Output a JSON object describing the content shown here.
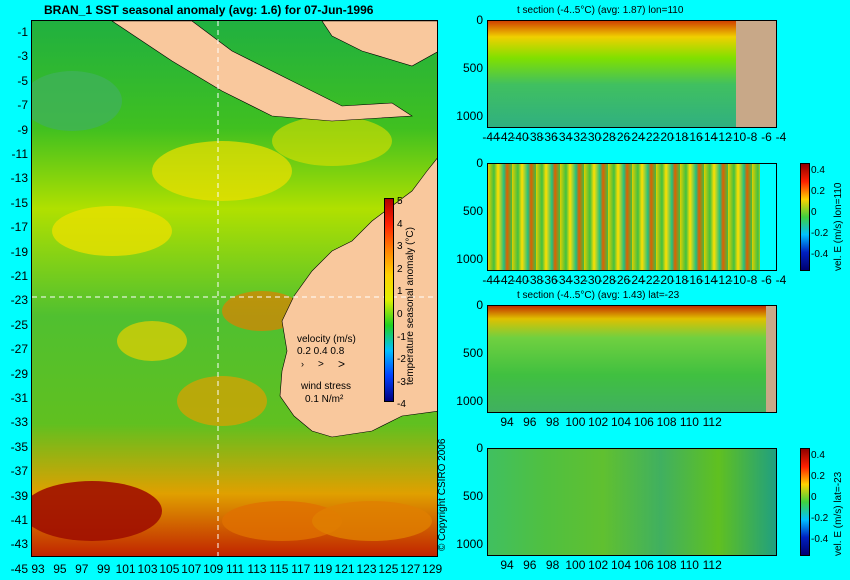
{
  "map": {
    "title": "BRAN_1  SST seasonal anomaly  (avg: 1.6)  for 07-Jun-1996",
    "lat_ticks": [
      "-1",
      "-3",
      "-5",
      "-7",
      "-9",
      "-11",
      "-13",
      "-15",
      "-17",
      "-19",
      "-21",
      "-23",
      "-25",
      "-27",
      "-29",
      "-31",
      "-33",
      "-35",
      "-37",
      "-39",
      "-41",
      "-43",
      "-45"
    ],
    "lon_ticks": [
      "93",
      "95",
      "97",
      "99",
      "101",
      "103",
      "105",
      "107",
      "109",
      "111",
      "113",
      "115",
      "117",
      "119",
      "121",
      "123",
      "125",
      "127",
      "129"
    ],
    "colorbar_label": "temperature seasonal anomaly (°C)",
    "colorbar_ticks": [
      "5",
      "4",
      "3",
      "2",
      "1",
      "0",
      "-1",
      "-2",
      "-3",
      "-4"
    ],
    "velocity_label": "velocity (m/s)",
    "velocity_scale": "0.2 0.4 0.8",
    "wind_label": "wind stress",
    "wind_scale": "0.1 N/m²",
    "copyright": "© Copyright CSIRO 2006",
    "colors": {
      "land": "#f9c89d",
      "section_land": "#c8a888",
      "background": "#00ffff"
    }
  },
  "panels": [
    {
      "title": "t section (-4..5°C) (avg: 1.87) lon=110",
      "y_ticks": [
        "0",
        "500",
        "1000"
      ],
      "x_ticks": [
        "-44",
        "-42",
        "-40",
        "-38",
        "-36",
        "-34",
        "-32",
        "-30",
        "-28",
        "-26",
        "-24",
        "-22",
        "-20",
        "-18",
        "-16",
        "-14",
        "-12",
        "-10",
        "-8",
        "-6",
        "-4"
      ]
    },
    {
      "title": "",
      "y_ticks": [
        "0",
        "500",
        "1000"
      ],
      "x_ticks": [
        "-44",
        "-42",
        "-40",
        "-38",
        "-36",
        "-34",
        "-32",
        "-30",
        "-28",
        "-26",
        "-24",
        "-22",
        "-20",
        "-18",
        "-16",
        "-14",
        "-12",
        "-10",
        "-8",
        "-6",
        "-4"
      ],
      "cbar_label": "vel. E (m/s) lon=110",
      "cbar_ticks": [
        "0.4",
        "0.2",
        "0",
        "-0.2",
        "-0.4"
      ]
    },
    {
      "title": "t section (-4..5°C) (avg: 1.43) lat=-23",
      "y_ticks": [
        "0",
        "500",
        "1000"
      ],
      "x_ticks": [
        "94",
        "96",
        "98",
        "100",
        "102",
        "104",
        "106",
        "108",
        "110",
        "112"
      ]
    },
    {
      "title": "",
      "y_ticks": [
        "0",
        "500",
        "1000"
      ],
      "x_ticks": [
        "94",
        "96",
        "98",
        "100",
        "102",
        "104",
        "106",
        "108",
        "110",
        "112"
      ],
      "cbar_label": "vel. E (m/s) lat=-23",
      "cbar_ticks": [
        "0.4",
        "0.2",
        "0",
        "-0.2",
        "-0.4"
      ]
    }
  ],
  "chart_data": [
    {
      "type": "heatmap",
      "title": "BRAN_1  SST seasonal anomaly  (avg: 1.6)  for 07-Jun-1996",
      "xlabel": "",
      "ylabel": "",
      "xlim": [
        93,
        130
      ],
      "ylim": [
        -45,
        0
      ],
      "colorbar": {
        "label": "temperature seasonal anomaly (°C)",
        "range": [
          -4,
          5
        ]
      }
    },
    {
      "type": "heatmap",
      "title": "t section (-4..5°C) (avg: 1.87) lon=110",
      "xlim": [
        -45,
        -3
      ],
      "ylim": [
        0,
        1050
      ]
    },
    {
      "type": "heatmap",
      "title": "",
      "xlim": [
        -45,
        -3
      ],
      "ylim": [
        0,
        1050
      ],
      "colorbar": {
        "label": "vel. E (m/s) lon=110",
        "range": [
          -0.4,
          0.4
        ]
      }
    },
    {
      "type": "heatmap",
      "title": "t section (-4..5°C) (avg: 1.43) lat=-23",
      "xlim": [
        93,
        114
      ],
      "ylim": [
        0,
        1050
      ]
    },
    {
      "type": "heatmap",
      "title": "",
      "xlim": [
        93,
        114
      ],
      "ylim": [
        0,
        1050
      ],
      "colorbar": {
        "label": "vel. E (m/s) lat=-23",
        "range": [
          -0.4,
          0.4
        ]
      }
    }
  ]
}
